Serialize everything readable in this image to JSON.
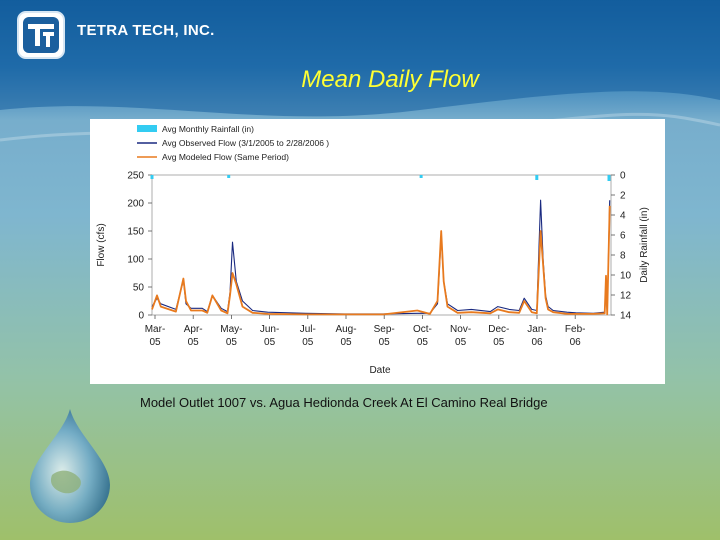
{
  "header": {
    "company": "TETRA TECH, INC.",
    "title": "Mean Daily Flow"
  },
  "caption": "Model Outlet 1007 vs. Agua Hedionda Creek At El Camino Real Bridge",
  "colors": {
    "rainfall": "#33ccf2",
    "observed": "#1a2a80",
    "modeled": "#e87a1e",
    "title": "#ffff33"
  },
  "chart_data": {
    "type": "line",
    "xlabel": "Date",
    "ylabel": "Flow (cfs)",
    "y2label": "Daily Rainfall (in)",
    "ylim": [
      0,
      250
    ],
    "y2lim": [
      0,
      14
    ],
    "y_ticks": [
      "0",
      "50",
      "100",
      "150",
      "200",
      "250"
    ],
    "y2_ticks": [
      "0",
      "2",
      "4",
      "6",
      "8",
      "10",
      "12",
      "14"
    ],
    "x_ticks": [
      {
        "month": "Mar-",
        "year": "05"
      },
      {
        "month": "Apr-",
        "year": "05"
      },
      {
        "month": "May-",
        "year": "05"
      },
      {
        "month": "Jun-",
        "year": "05"
      },
      {
        "month": "Jul-",
        "year": "05"
      },
      {
        "month": "Aug-",
        "year": "05"
      },
      {
        "month": "Sep-",
        "year": "05"
      },
      {
        "month": "Oct-",
        "year": "05"
      },
      {
        "month": "Nov-",
        "year": "05"
      },
      {
        "month": "Dec-",
        "year": "05"
      },
      {
        "month": "Jan-",
        "year": "06"
      },
      {
        "month": "Feb-",
        "year": "06"
      }
    ],
    "legend": [
      "Avg Monthly Rainfall (in)",
      "Avg Observed Flow (3/1/2005 to 2/28/2006 )",
      "Avg Modeled Flow (Same Period)"
    ],
    "legend_position": "top-left",
    "series": [
      {
        "name": "Avg Monthly Rainfall (in)",
        "style": "bar-inverted",
        "x": [
          "2005-03-01",
          "2005-05-01",
          "2005-10-01",
          "2006-01-01",
          "2006-03-01"
        ],
        "values": [
          0.4,
          0.3,
          0.3,
          0.5,
          0.6
        ]
      },
      {
        "name": "Avg Observed Flow (3/1/2005 to 2/28/2006 )",
        "x": [
          "2005-03-01",
          "2005-03-05",
          "2005-03-08",
          "2005-03-20",
          "2005-03-26",
          "2005-03-28",
          "2005-04-01",
          "2005-04-10",
          "2005-04-14",
          "2005-04-18",
          "2005-04-25",
          "2005-04-30",
          "2005-05-02",
          "2005-05-04",
          "2005-05-07",
          "2005-05-12",
          "2005-05-20",
          "2005-06-01",
          "2005-07-01",
          "2005-08-01",
          "2005-09-01",
          "2005-09-28",
          "2005-10-08",
          "2005-10-14",
          "2005-10-17",
          "2005-10-19",
          "2005-10-22",
          "2005-10-30",
          "2005-11-10",
          "2005-11-25",
          "2005-12-01",
          "2005-12-10",
          "2005-12-18",
          "2005-12-22",
          "2005-12-28",
          "2006-01-01",
          "2006-01-04",
          "2006-01-06",
          "2006-01-08",
          "2006-01-10",
          "2006-01-14",
          "2006-01-25",
          "2006-02-01",
          "2006-02-15",
          "2006-02-24",
          "2006-02-25",
          "2006-02-26",
          "2006-02-28"
        ],
        "values": [
          15,
          30,
          20,
          10,
          62,
          20,
          12,
          12,
          6,
          35,
          12,
          6,
          40,
          130,
          60,
          25,
          8,
          5,
          3,
          2,
          2,
          3,
          3,
          20,
          140,
          60,
          20,
          8,
          10,
          6,
          15,
          10,
          8,
          30,
          10,
          8,
          205,
          100,
          35,
          15,
          8,
          5,
          4,
          3,
          5,
          45,
          2,
          205
        ]
      },
      {
        "name": "Avg Modeled Flow (Same Period)",
        "x": [
          "2005-03-01",
          "2005-03-05",
          "2005-03-08",
          "2005-03-20",
          "2005-03-26",
          "2005-03-28",
          "2005-04-01",
          "2005-04-10",
          "2005-04-14",
          "2005-04-18",
          "2005-04-25",
          "2005-04-30",
          "2005-05-02",
          "2005-05-04",
          "2005-05-07",
          "2005-05-12",
          "2005-05-20",
          "2005-06-01",
          "2005-07-01",
          "2005-08-01",
          "2005-09-01",
          "2005-09-28",
          "2005-10-08",
          "2005-10-14",
          "2005-10-17",
          "2005-10-19",
          "2005-10-22",
          "2005-10-30",
          "2005-11-10",
          "2005-11-25",
          "2005-12-01",
          "2005-12-10",
          "2005-12-18",
          "2005-12-22",
          "2005-12-28",
          "2006-01-01",
          "2006-01-04",
          "2006-01-06",
          "2006-01-08",
          "2006-01-10",
          "2006-01-14",
          "2006-01-25",
          "2006-02-01",
          "2006-02-15",
          "2006-02-24",
          "2006-02-25",
          "2006-02-26",
          "2006-02-28"
        ],
        "values": [
          10,
          35,
          15,
          6,
          65,
          25,
          8,
          8,
          4,
          35,
          8,
          3,
          35,
          75,
          55,
          15,
          4,
          2,
          1,
          1,
          1,
          8,
          2,
          25,
          150,
          60,
          15,
          4,
          5,
          3,
          10,
          5,
          4,
          25,
          5,
          3,
          150,
          90,
          30,
          10,
          5,
          2,
          2,
          2,
          3,
          70,
          1,
          195
        ]
      }
    ]
  }
}
